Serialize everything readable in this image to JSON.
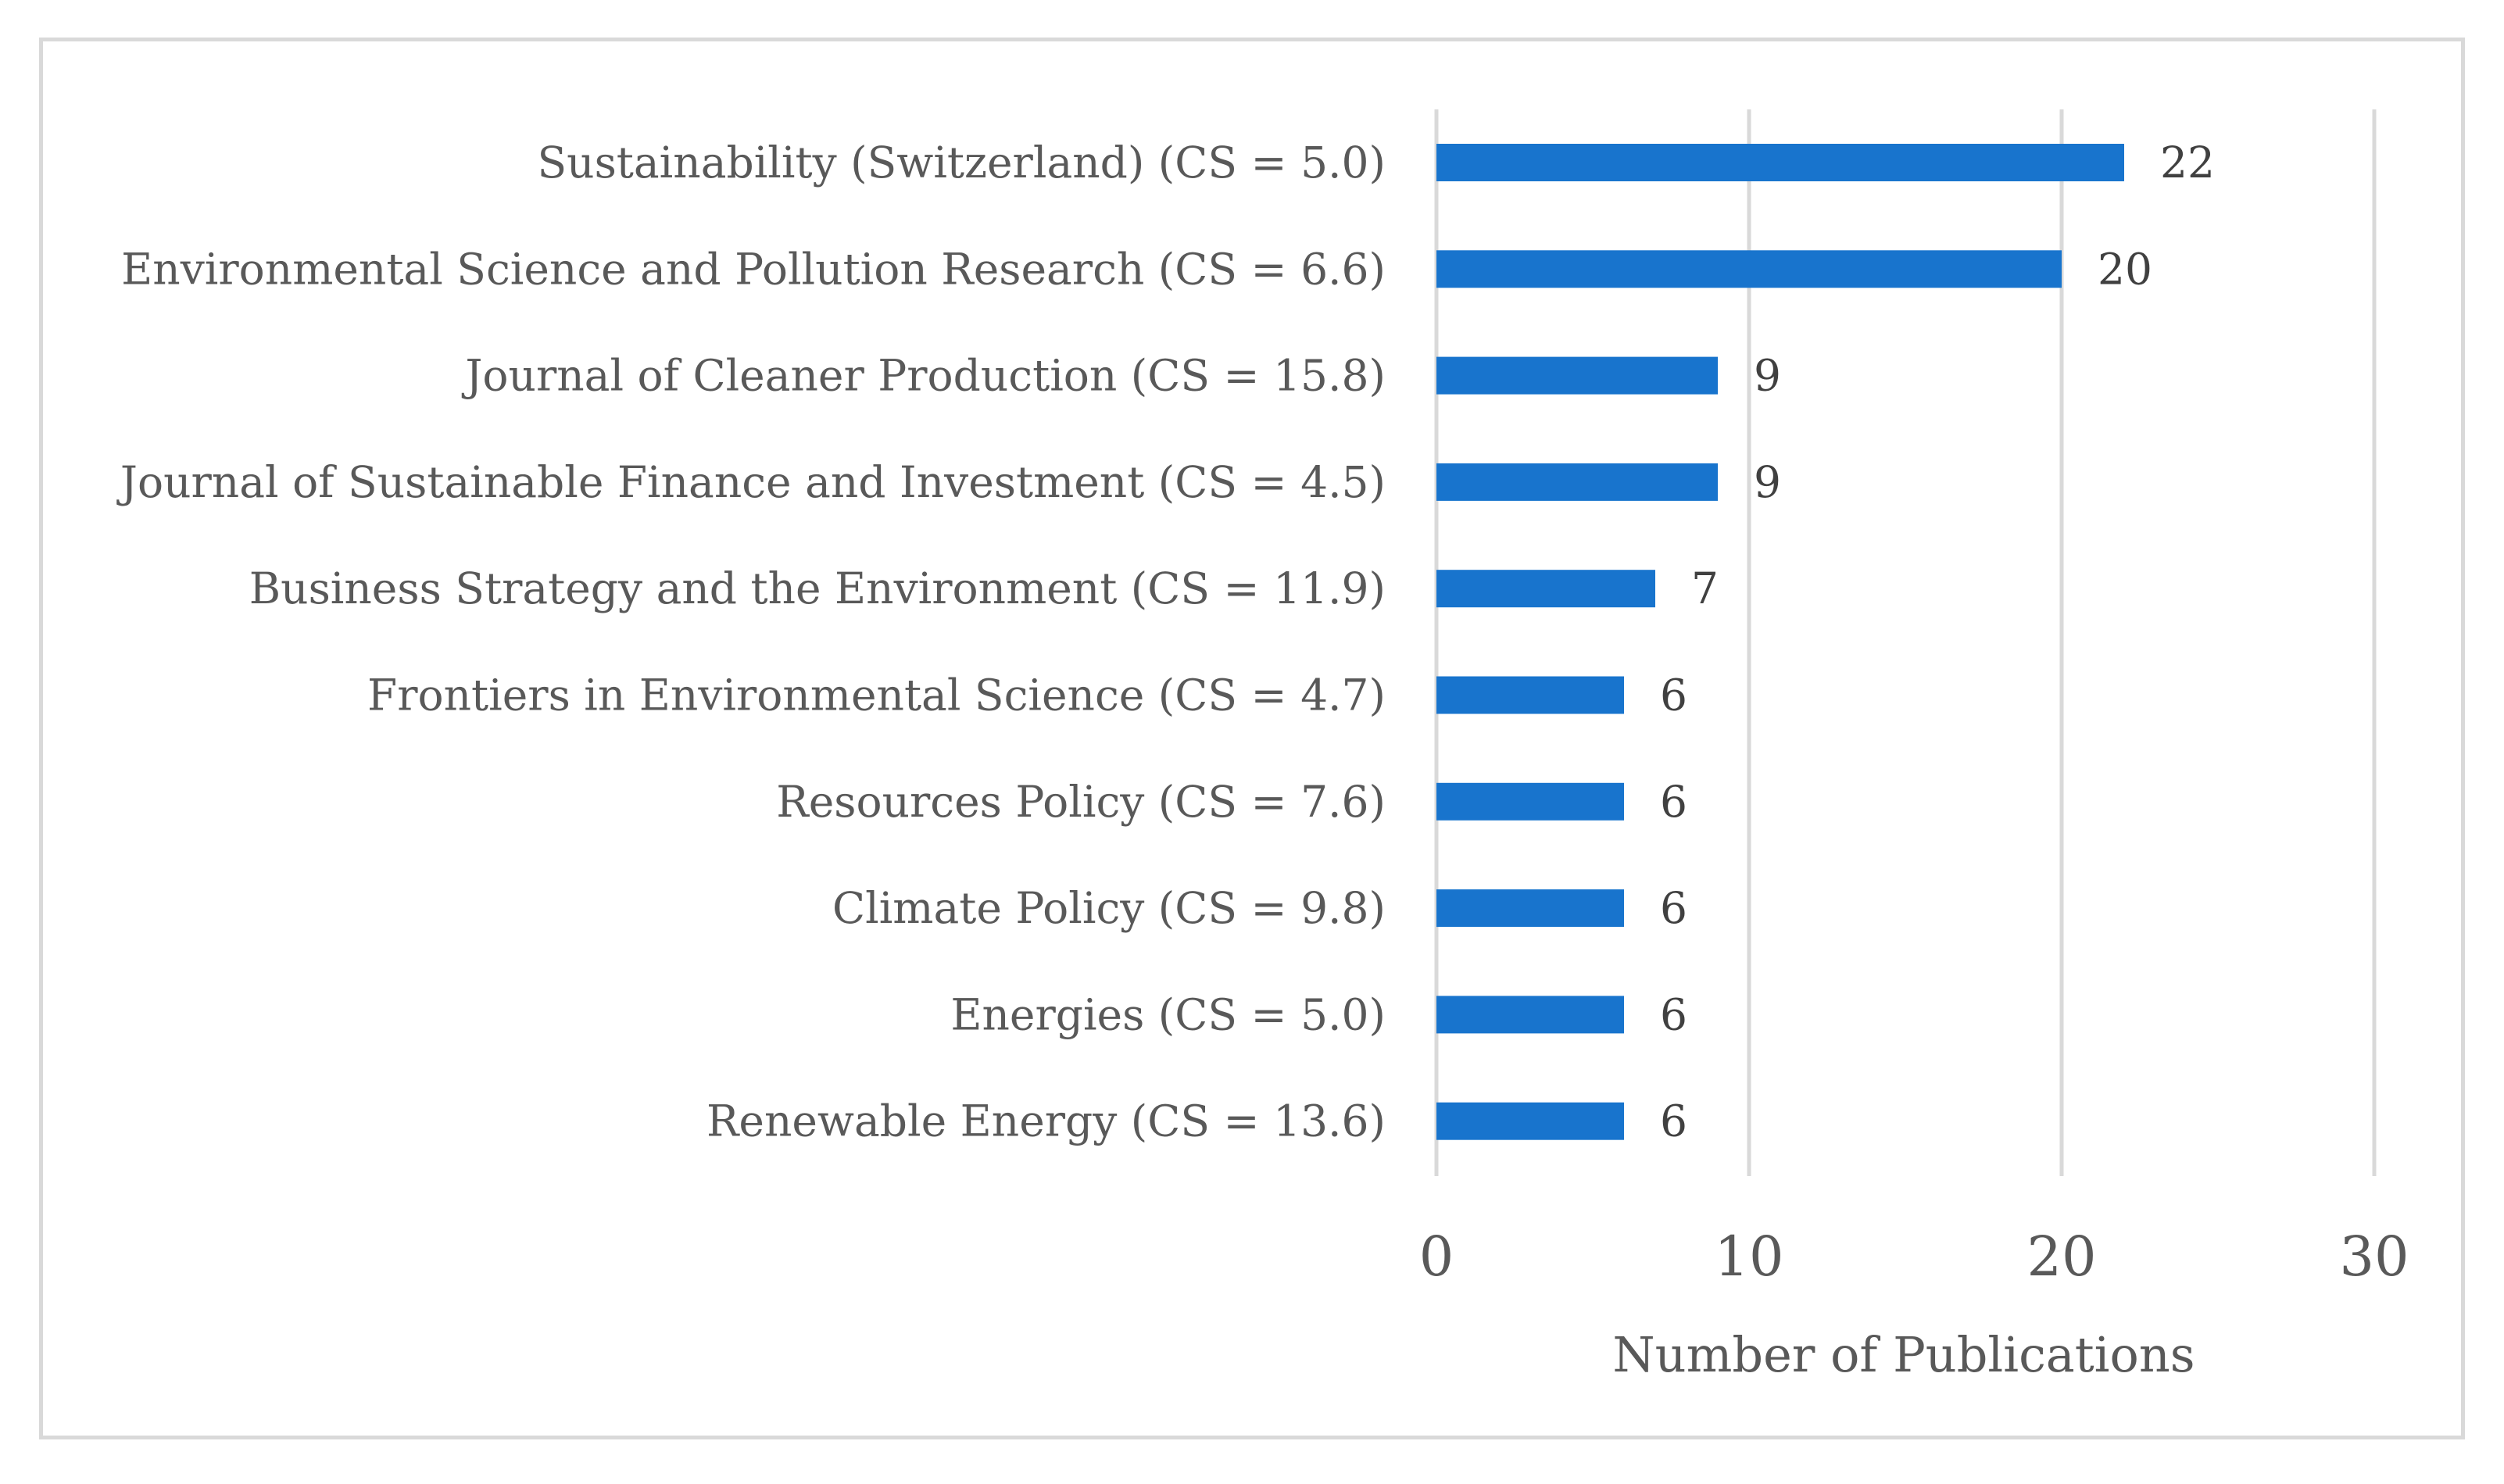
{
  "chart_data": {
    "type": "bar",
    "orientation": "horizontal",
    "categories": [
      "Sustainability (Switzerland) (CS = 5.0)",
      "Environmental Science and Pollution Research (CS = 6.6)",
      "Journal of Cleaner Production (CS = 15.8)",
      "Journal of Sustainable Finance and Investment (CS = 4.5)",
      "Business Strategy and the Environment (CS = 11.9)",
      "Frontiers in Environmental Science (CS = 4.7)",
      "Resources Policy (CS = 7.6)",
      "Climate Policy (CS = 9.8)",
      "Energies (CS = 5.0)",
      "Renewable Energy (CS = 13.6)"
    ],
    "values": [
      22,
      20,
      9,
      9,
      7,
      6,
      6,
      6,
      6,
      6
    ],
    "title": "",
    "xlabel": "Number of Publications",
    "ylabel": "",
    "xlim": [
      0,
      30
    ],
    "xticks": [
      0,
      10,
      20,
      30
    ],
    "grid": true,
    "legend": "none",
    "bar_color": "#1874cd"
  }
}
